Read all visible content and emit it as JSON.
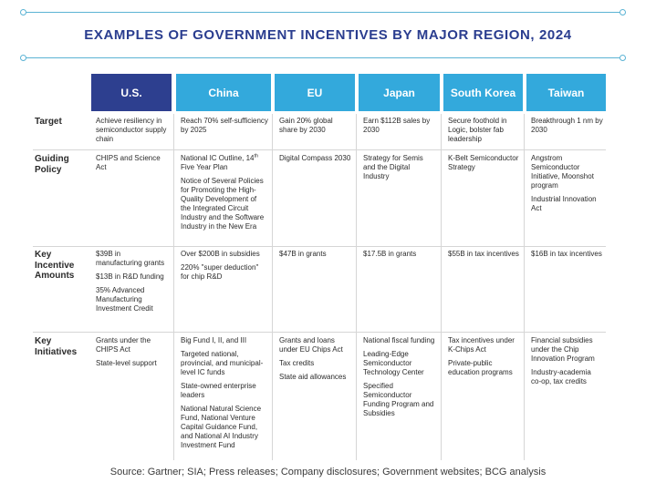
{
  "title": "EXAMPLES OF GOVERNMENT INCENTIVES BY MAJOR REGION, 2024",
  "regions": [
    "U.S.",
    "China",
    "EU",
    "Japan",
    "South Korea",
    "Taiwan"
  ],
  "rows": [
    {
      "label": "Target",
      "cells": [
        [
          "Achieve resiliency in semiconductor supply chain"
        ],
        [
          "Reach 70% self-sufficiency by 2025"
        ],
        [
          "Gain 20% global share by 2030"
        ],
        [
          "Earn $112B sales by 2030"
        ],
        [
          "Secure foothold in Logic, bolster fab leadership"
        ],
        [
          "Breakthrough 1 nm by 2030"
        ]
      ]
    },
    {
      "label": "Guiding Policy",
      "cells": [
        [
          "CHIPS and Science Act"
        ],
        [
          "National IC Outline, 14th Five Year Plan",
          "Notice of Several Policies for Promoting the High-Quality Development of the Integrated Circuit Industry and the Software Industry in the New Era"
        ],
        [
          "Digital Compass 2030"
        ],
        [
          "Strategy for Semis and the Digital Industry"
        ],
        [
          "K-Belt Semiconductor Strategy"
        ],
        [
          "Angstrom Semiconductor Initiative, Moonshot program",
          "Industrial Innovation Act"
        ]
      ]
    },
    {
      "label": "Key Incentive Amounts",
      "cells": [
        [
          "$39B in manufacturing grants",
          "$13B in R&D funding",
          "35% Advanced Manufacturing Investment Credit"
        ],
        [
          "Over $200B in subsidies",
          "220% \"super deduction\" for chip R&D"
        ],
        [
          "$47B in grants"
        ],
        [
          "$17.5B in grants"
        ],
        [
          "$55B in tax incentives"
        ],
        [
          "$16B in tax incentives"
        ]
      ]
    },
    {
      "label": "Key Initiatives",
      "cells": [
        [
          "Grants under the CHIPS Act",
          "State-level support"
        ],
        [
          "Big Fund I, II, and III",
          "Targeted national, provincial, and municipal-level IC funds",
          "State-owned enterprise leaders",
          "National Natural Science Fund, National Venture Capital Guidance Fund, and National AI Industry Investment Fund"
        ],
        [
          "Grants and loans under EU Chips Act",
          "Tax credits",
          "State aid allowances"
        ],
        [
          "National fiscal funding",
          "Leading-Edge Semiconductor Technology Center",
          "Specified Semiconductor Funding Program and Subsidies"
        ],
        [
          "Tax incentives under K-Chips Act",
          "Private-public education programs"
        ],
        [
          "Financial subsidies under the Chip Innovation Program",
          "Industry-academia co-op, tax credits"
        ]
      ]
    }
  ],
  "source": "Source: Gartner; SIA; Press releases; Company disclosures; Government websites; BCG analysis",
  "colors": {
    "title": "#2a3d8f",
    "us_header": "#2d3f8f",
    "other_header": "#33a9dc",
    "rule": "#5bb3d4"
  }
}
